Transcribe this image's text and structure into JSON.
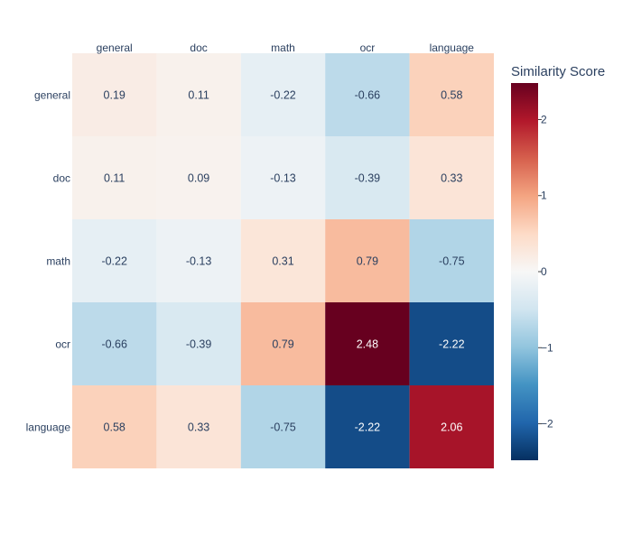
{
  "chart_data": {
    "type": "heatmap",
    "title": "",
    "x_categories": [
      "general",
      "doc",
      "math",
      "ocr",
      "language"
    ],
    "y_categories": [
      "general",
      "doc",
      "math",
      "ocr",
      "language"
    ],
    "z": [
      [
        0.19,
        0.11,
        -0.22,
        -0.66,
        0.58
      ],
      [
        0.11,
        0.09,
        -0.13,
        -0.39,
        0.33
      ],
      [
        -0.22,
        -0.13,
        0.31,
        0.79,
        -0.75
      ],
      [
        -0.66,
        -0.39,
        0.79,
        2.48,
        -2.22
      ],
      [
        0.58,
        0.33,
        -0.75,
        -2.22,
        2.06
      ]
    ],
    "cell_labels": [
      [
        "0.19",
        "0.11",
        "-0.22",
        "-0.66",
        "0.58"
      ],
      [
        "0.11",
        "0.09",
        "-0.13",
        "-0.39",
        "0.33"
      ],
      [
        "-0.22",
        "-0.13",
        "0.31",
        "0.79",
        "-0.75"
      ],
      [
        "-0.66",
        "-0.39",
        "0.79",
        "2.48",
        "-2.22"
      ],
      [
        "0.58",
        "0.33",
        "-0.75",
        "-2.22",
        "2.06"
      ]
    ],
    "colorbar": {
      "title": "Similarity Score",
      "zmin": -2.48,
      "zmax": 2.48,
      "tick_values": [
        2,
        1,
        0,
        -1,
        -2
      ],
      "tick_labels": [
        "2",
        "1",
        "0",
        "−1",
        "−2"
      ]
    },
    "colorscale": {
      "name": "RdBu",
      "stops": [
        [
          0.0,
          "#053061"
        ],
        [
          0.1,
          "#2166ac"
        ],
        [
          0.2,
          "#4393c3"
        ],
        [
          0.3,
          "#92c5de"
        ],
        [
          0.4,
          "#d1e5f0"
        ],
        [
          0.5,
          "#f7f7f7"
        ],
        [
          0.6,
          "#fddbc7"
        ],
        [
          0.7,
          "#f4a582"
        ],
        [
          0.8,
          "#d6604d"
        ],
        [
          0.9,
          "#b2182b"
        ],
        [
          1.0,
          "#67001f"
        ]
      ]
    },
    "x_axis_side": "top"
  }
}
